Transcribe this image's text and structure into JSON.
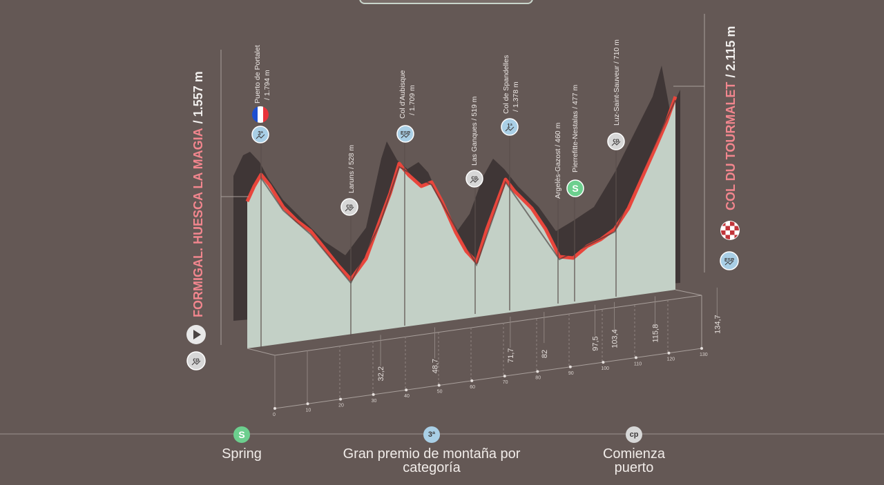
{
  "start": {
    "name": "FORMIGAL. HUESCA LA MAGIA",
    "altitude": "/ 1.557 m"
  },
  "finish": {
    "name": "COL DU TOURMALET",
    "altitude": "/ 2.115 m"
  },
  "points": [
    {
      "name": "Puerto de Portalet",
      "alt": "/ 1.794 m",
      "icon": "3ª",
      "icon_type": "category",
      "flag": "france-flag-icon"
    },
    {
      "name": "Laruns",
      "alt": "/ 528 m",
      "icon": "cp",
      "icon_type": "start-climb"
    },
    {
      "name": "Col d'Aubisque",
      "alt": "/ 1.709 m",
      "icon": "ESP",
      "icon_type": "category"
    },
    {
      "name": "Las Ganques",
      "alt": "/ 519 m",
      "icon": "cp",
      "icon_type": "start-climb"
    },
    {
      "name": "Col de Spandelles",
      "alt": "/ 1.378 m",
      "icon": "1ª",
      "icon_type": "category"
    },
    {
      "name": "Argelès-Gazost",
      "alt": "/ 460 m"
    },
    {
      "name": "Pierrefitte-Nestalas",
      "alt": "/ 477 m",
      "icon": "S",
      "icon_type": "sprint"
    },
    {
      "name": "Luz-Saint-Sauveur",
      "alt": "/ 710 m",
      "icon": "cp",
      "icon_type": "start-climb"
    }
  ],
  "finish_icons": [
    "checkered-flag-icon",
    "ESP"
  ],
  "start_icons": [
    "play-icon",
    "cp"
  ],
  "km_marks": [
    "32,2",
    "48,7",
    "71,7",
    "82",
    "97,5",
    "103,4",
    "115,8",
    "134,7"
  ],
  "axis_ticks": [
    "0",
    "10",
    "20",
    "30",
    "40",
    "50",
    "60",
    "70",
    "80",
    "90",
    "100",
    "110",
    "120",
    "130"
  ],
  "legend": [
    {
      "icon": "S",
      "label": "Spring"
    },
    {
      "icon": "3ª",
      "label": "Gran premio de montaña por categoría"
    },
    {
      "icon": "cp",
      "label": "Comienza puerto"
    }
  ],
  "colors": {
    "background": "#645855",
    "profile_fill": "#c3d0c6",
    "profile_line": "#e8463c",
    "shadow": "#3f3636",
    "label_pink": "#f2868e",
    "sprint_green": "#6ccf8e",
    "icon_blue": "#a9cfe6",
    "icon_grey": "#d7d7d7"
  }
}
